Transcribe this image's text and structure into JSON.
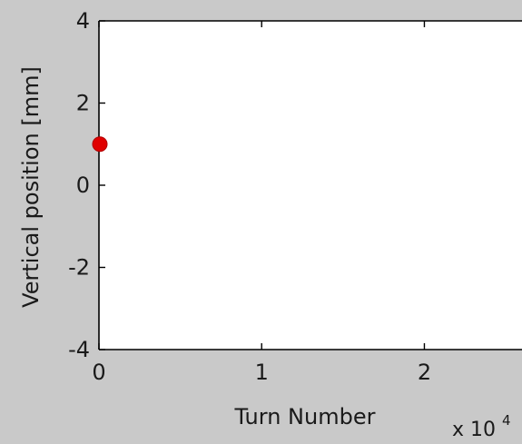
{
  "chart_data": {
    "type": "scatter",
    "title": "",
    "xlabel": "Turn Number",
    "ylabel": "Vertical position [mm]",
    "x_multiplier_label": "x 10",
    "x_multiplier_exponent": "4",
    "xlim": [
      0,
      26000
    ],
    "ylim": [
      -4,
      4
    ],
    "x_ticks": [
      {
        "value": 0,
        "label": "0"
      },
      {
        "value": 10000,
        "label": "1"
      },
      {
        "value": 20000,
        "label": "2"
      }
    ],
    "y_ticks": [
      {
        "value": -4,
        "label": "-4"
      },
      {
        "value": -2,
        "label": "-2"
      },
      {
        "value": 0,
        "label": "0"
      },
      {
        "value": 2,
        "label": "2"
      },
      {
        "value": 4,
        "label": "4"
      }
    ],
    "grid": false,
    "series": [
      {
        "points": [
          {
            "x": 0,
            "y": 1
          }
        ],
        "color": "#e00000"
      }
    ],
    "colors": {
      "figure_background": "#c9c9c9",
      "axes_background": "#ffffff",
      "marker": "#e00000"
    }
  }
}
